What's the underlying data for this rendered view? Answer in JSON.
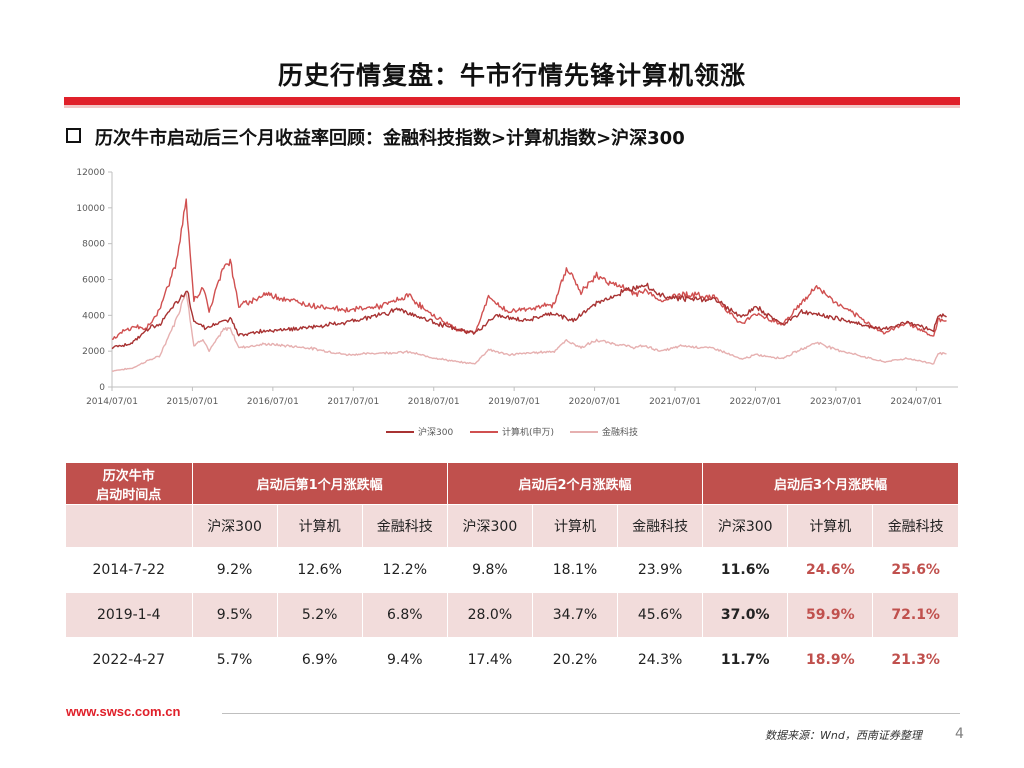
{
  "header": {
    "title": "历史行情复盘：牛市行情先锋计算机领涨",
    "subtitle": "历次牛市启动后三个月收益率回顾：金融科技指数>计算机指数>沪深300"
  },
  "colors": {
    "hs300": "#a83232",
    "computer": "#d05050",
    "fintech": "#e6b0b0",
    "accent": "#e0202a",
    "table_header": "#c0504d",
    "table_stripe": "#f2dcdb"
  },
  "chart_data": {
    "type": "line",
    "title": "",
    "xlabel": "",
    "ylabel": "",
    "ylim": [
      0,
      12000
    ],
    "yticks": [
      "0",
      "2000",
      "4000",
      "6000",
      "8000",
      "10000",
      "12000"
    ],
    "xticks": [
      "2014/07/01",
      "2015/07/01",
      "2016/07/01",
      "2017/07/01",
      "2018/07/01",
      "2019/07/01",
      "2020/07/01",
      "2021/07/01",
      "2022/07/01",
      "2023/07/01",
      "2024/07/01"
    ],
    "grid": false,
    "legend_position": "bottom",
    "series": [
      {
        "name": "沪深300",
        "color": "#a83232",
        "points": [
          [
            "2014-07-01",
            2200
          ],
          [
            "2014-10-01",
            2450
          ],
          [
            "2014-12-15",
            3300
          ],
          [
            "2015-02-01",
            3500
          ],
          [
            "2015-04-15",
            4600
          ],
          [
            "2015-06-08",
            5350
          ],
          [
            "2015-07-08",
            3700
          ],
          [
            "2015-09-01",
            3300
          ],
          [
            "2015-12-20",
            3800
          ],
          [
            "2016-01-28",
            2900
          ],
          [
            "2016-06-01",
            3150
          ],
          [
            "2016-12-01",
            3300
          ],
          [
            "2017-06-01",
            3600
          ],
          [
            "2017-11-20",
            4100
          ],
          [
            "2018-01-25",
            4350
          ],
          [
            "2018-06-01",
            3750
          ],
          [
            "2018-10-15",
            3200
          ],
          [
            "2019-01-04",
            3000
          ],
          [
            "2019-04-10",
            4000
          ],
          [
            "2019-08-15",
            3700
          ],
          [
            "2019-12-31",
            4100
          ],
          [
            "2020-03-20",
            3700
          ],
          [
            "2020-07-15",
            4700
          ],
          [
            "2021-02-10",
            5800
          ],
          [
            "2021-05-01",
            5100
          ],
          [
            "2021-09-01",
            4900
          ],
          [
            "2021-12-31",
            4900
          ],
          [
            "2022-04-27",
            3900
          ],
          [
            "2022-07-05",
            4450
          ],
          [
            "2022-10-31",
            3500
          ],
          [
            "2023-01-27",
            4200
          ],
          [
            "2023-07-01",
            3850
          ],
          [
            "2024-02-05",
            3200
          ],
          [
            "2024-05-20",
            3650
          ],
          [
            "2024-09-18",
            3150
          ],
          [
            "2024-10-08",
            4000
          ],
          [
            "2024-11-15",
            3900
          ]
        ]
      },
      {
        "name": "计算机(申万)",
        "color": "#d05050",
        "points": [
          [
            "2014-07-01",
            2600
          ],
          [
            "2014-08-20",
            3100
          ],
          [
            "2014-10-20",
            3400
          ],
          [
            "2014-12-01",
            3200
          ],
          [
            "2015-02-01",
            4300
          ],
          [
            "2015-04-20",
            7000
          ],
          [
            "2015-06-03",
            10300
          ],
          [
            "2015-07-08",
            4800
          ],
          [
            "2015-08-18",
            5600
          ],
          [
            "2015-09-15",
            4200
          ],
          [
            "2015-11-20",
            6800
          ],
          [
            "2015-12-20",
            7000
          ],
          [
            "2016-01-28",
            4500
          ],
          [
            "2016-06-01",
            5200
          ],
          [
            "2016-12-01",
            4600
          ],
          [
            "2017-06-01",
            4300
          ],
          [
            "2017-11-01",
            4500
          ],
          [
            "2018-03-12",
            5100
          ],
          [
            "2018-06-01",
            4200
          ],
          [
            "2018-10-18",
            3200
          ],
          [
            "2019-01-04",
            3000
          ],
          [
            "2019-03-07",
            5000
          ],
          [
            "2019-06-01",
            4200
          ],
          [
            "2019-12-31",
            4600
          ],
          [
            "2020-02-24",
            6700
          ],
          [
            "2020-04-30",
            5300
          ],
          [
            "2020-07-10",
            6200
          ],
          [
            "2020-12-31",
            5200
          ],
          [
            "2021-02-10",
            5400
          ],
          [
            "2021-05-01",
            4800
          ],
          [
            "2021-08-01",
            5200
          ],
          [
            "2021-12-31",
            5000
          ],
          [
            "2022-04-27",
            3500
          ],
          [
            "2022-07-05",
            4100
          ],
          [
            "2022-10-31",
            3500
          ],
          [
            "2023-04-05",
            5600
          ],
          [
            "2023-07-01",
            4700
          ],
          [
            "2024-02-05",
            3000
          ],
          [
            "2024-05-20",
            3600
          ],
          [
            "2024-09-18",
            2800
          ],
          [
            "2024-10-08",
            3800
          ],
          [
            "2024-11-15",
            3700
          ]
        ]
      },
      {
        "name": "金融科技",
        "color": "#e6b0b0",
        "points": [
          [
            "2014-07-01",
            900
          ],
          [
            "2014-10-01",
            1050
          ],
          [
            "2014-12-15",
            1500
          ],
          [
            "2015-02-01",
            1700
          ],
          [
            "2015-04-20",
            3800
          ],
          [
            "2015-06-03",
            5400
          ],
          [
            "2015-07-08",
            2300
          ],
          [
            "2015-08-18",
            2700
          ],
          [
            "2015-09-15",
            2000
          ],
          [
            "2015-11-20",
            3200
          ],
          [
            "2015-12-20",
            3300
          ],
          [
            "2016-01-28",
            2200
          ],
          [
            "2016-06-01",
            2400
          ],
          [
            "2016-12-01",
            2200
          ],
          [
            "2017-06-01",
            1800
          ],
          [
            "2017-11-01",
            1900
          ],
          [
            "2018-03-12",
            1950
          ],
          [
            "2018-06-01",
            1700
          ],
          [
            "2018-10-18",
            1400
          ],
          [
            "2019-01-04",
            1300
          ],
          [
            "2019-03-07",
            2100
          ],
          [
            "2019-06-01",
            1800
          ],
          [
            "2019-12-31",
            2000
          ],
          [
            "2020-02-24",
            2600
          ],
          [
            "2020-04-30",
            2200
          ],
          [
            "2020-07-10",
            2600
          ],
          [
            "2020-12-31",
            2200
          ],
          [
            "2021-02-10",
            2300
          ],
          [
            "2021-05-01",
            2000
          ],
          [
            "2021-08-01",
            2300
          ],
          [
            "2021-12-31",
            2150
          ],
          [
            "2022-04-27",
            1550
          ],
          [
            "2022-07-05",
            1800
          ],
          [
            "2022-10-31",
            1600
          ],
          [
            "2023-04-05",
            2500
          ],
          [
            "2023-07-01",
            2100
          ],
          [
            "2024-02-05",
            1400
          ],
          [
            "2024-05-20",
            1600
          ],
          [
            "2024-09-18",
            1300
          ],
          [
            "2024-10-08",
            1900
          ],
          [
            "2024-11-15",
            1850
          ]
        ]
      }
    ]
  },
  "table": {
    "header": {
      "start_label_1": "历次牛市",
      "start_label_2": "启动时间点",
      "group1": "启动后第1个月涨跌幅",
      "group2": "启动后2个月涨跌幅",
      "group3": "启动后3个月涨跌幅"
    },
    "subheaders": [
      "沪深300",
      "计算机",
      "金融科技",
      "沪深300",
      "计算机",
      "金融科技",
      "沪深300",
      "计算机",
      "金融科技"
    ],
    "rows": [
      {
        "date": "2014-7-22",
        "values": [
          "9.2%",
          "12.6%",
          "12.2%",
          "9.8%",
          "18.1%",
          "23.9%",
          "11.6%",
          "24.6%",
          "25.6%"
        ]
      },
      {
        "date": "2019-1-4",
        "values": [
          "9.5%",
          "5.2%",
          "6.8%",
          "28.0%",
          "34.7%",
          "45.6%",
          "37.0%",
          "59.9%",
          "72.1%"
        ]
      },
      {
        "date": "2022-4-27",
        "values": [
          "5.7%",
          "6.9%",
          "9.4%",
          "17.4%",
          "20.2%",
          "24.3%",
          "11.7%",
          "18.9%",
          "21.3%"
        ]
      }
    ]
  },
  "footer": {
    "url": "www.swsc.com.cn",
    "source": "数据来源：Wnd，西南证券整理",
    "page": "4"
  }
}
